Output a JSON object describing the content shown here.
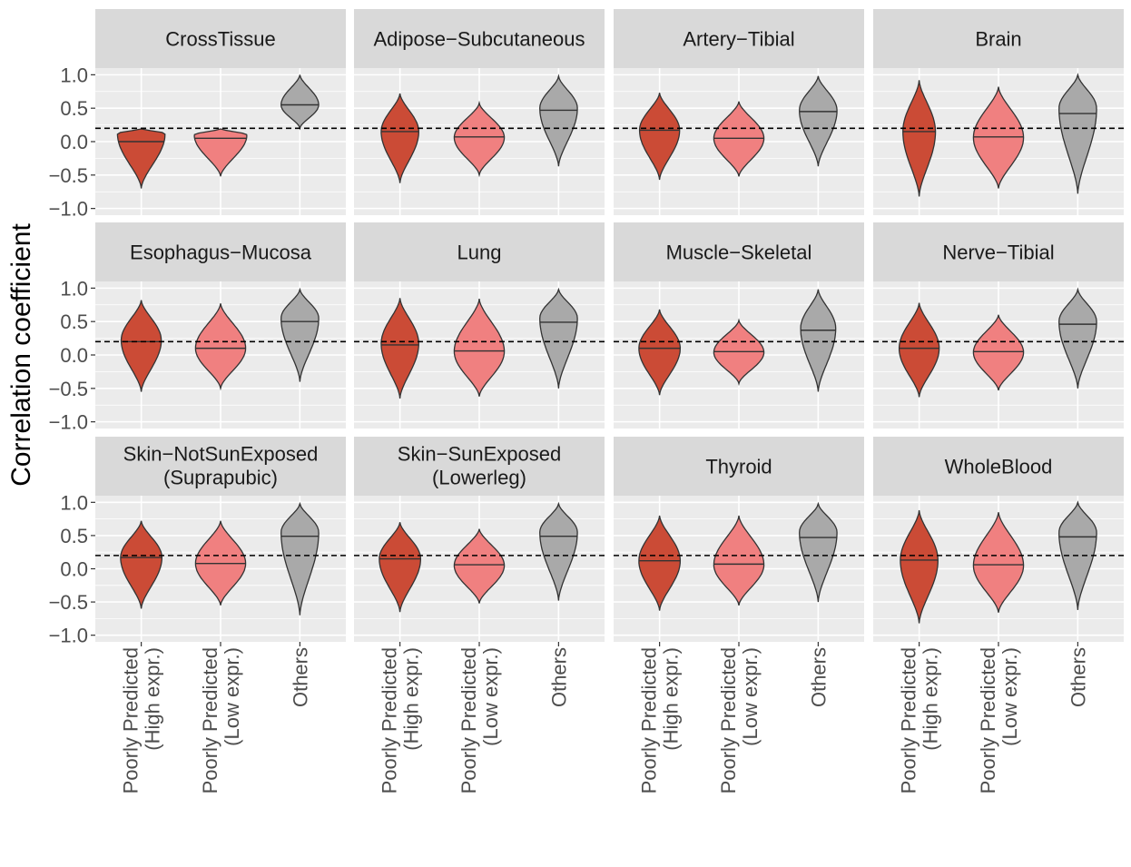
{
  "chart_data": {
    "type": "violin",
    "ylabel": "Correlation coefficient",
    "xlabel": "",
    "ylim": [
      -1.1,
      1.1
    ],
    "yticks": [
      1.0,
      0.5,
      0.0,
      -0.5,
      -1.0
    ],
    "ytick_labels": [
      "1.0",
      "0.5",
      "0.0",
      "−0.5",
      "−1.0"
    ],
    "threshold": 0.2,
    "categories": [
      {
        "line1": "Poorly Predicted",
        "line2": "(High expr.)",
        "color": "#CB4B36"
      },
      {
        "line1": "Poorly Predicted",
        "line2": "(Low expr.)",
        "color": "#F08080"
      },
      {
        "line1": "Others",
        "line2": "",
        "color": "#A9A9A9"
      }
    ],
    "panels": [
      {
        "title": [
          "CrossTissue"
        ],
        "violins": [
          {
            "min": -0.7,
            "max": 0.19,
            "median": 0.0,
            "mode": 0.12,
            "width": 0.38
          },
          {
            "min": -0.52,
            "max": 0.19,
            "median": 0.05,
            "mode": 0.1,
            "width": 0.42
          },
          {
            "min": 0.2,
            "max": 1.0,
            "median": 0.55,
            "mode": 0.55,
            "width": 0.3
          }
        ]
      },
      {
        "title": [
          "Adipose−Subcutaneous"
        ],
        "violins": [
          {
            "min": -0.62,
            "max": 0.72,
            "median": 0.15,
            "mode": 0.15,
            "width": 0.3
          },
          {
            "min": -0.5,
            "max": 0.58,
            "median": 0.07,
            "mode": 0.06,
            "width": 0.4
          },
          {
            "min": -0.37,
            "max": 0.98,
            "median": 0.47,
            "mode": 0.5,
            "width": 0.3
          }
        ]
      },
      {
        "title": [
          "Artery−Tibial"
        ],
        "violins": [
          {
            "min": -0.57,
            "max": 0.73,
            "median": 0.17,
            "mode": 0.17,
            "width": 0.32
          },
          {
            "min": -0.52,
            "max": 0.6,
            "median": 0.05,
            "mode": 0.05,
            "width": 0.4
          },
          {
            "min": -0.37,
            "max": 0.98,
            "median": 0.45,
            "mode": 0.47,
            "width": 0.3
          }
        ]
      },
      {
        "title": [
          "Brain"
        ],
        "violins": [
          {
            "min": -0.82,
            "max": 0.92,
            "median": 0.15,
            "mode": 0.15,
            "width": 0.26
          },
          {
            "min": -0.7,
            "max": 0.82,
            "median": 0.07,
            "mode": 0.06,
            "width": 0.4
          },
          {
            "min": -0.78,
            "max": 1.0,
            "median": 0.42,
            "mode": 0.5,
            "width": 0.3
          }
        ]
      },
      {
        "title": [
          "Esophagus−Mucosa"
        ],
        "violins": [
          {
            "min": -0.55,
            "max": 0.82,
            "median": 0.2,
            "mode": 0.22,
            "width": 0.32
          },
          {
            "min": -0.5,
            "max": 0.77,
            "median": 0.1,
            "mode": 0.1,
            "width": 0.4
          },
          {
            "min": -0.4,
            "max": 0.98,
            "median": 0.5,
            "mode": 0.55,
            "width": 0.3
          }
        ]
      },
      {
        "title": [
          "Lung"
        ],
        "violins": [
          {
            "min": -0.65,
            "max": 0.85,
            "median": 0.15,
            "mode": 0.17,
            "width": 0.3
          },
          {
            "min": -0.62,
            "max": 0.84,
            "median": 0.06,
            "mode": 0.05,
            "width": 0.4
          },
          {
            "min": -0.5,
            "max": 0.98,
            "median": 0.49,
            "mode": 0.55,
            "width": 0.3
          }
        ]
      },
      {
        "title": [
          "Muscle−Skeletal"
        ],
        "violins": [
          {
            "min": -0.6,
            "max": 0.68,
            "median": 0.1,
            "mode": 0.1,
            "width": 0.33
          },
          {
            "min": -0.43,
            "max": 0.52,
            "median": 0.05,
            "mode": 0.04,
            "width": 0.4
          },
          {
            "min": -0.55,
            "max": 0.98,
            "median": 0.37,
            "mode": 0.4,
            "width": 0.28
          }
        ]
      },
      {
        "title": [
          "Nerve−Tibial"
        ],
        "violins": [
          {
            "min": -0.63,
            "max": 0.78,
            "median": 0.1,
            "mode": 0.1,
            "width": 0.32
          },
          {
            "min": -0.53,
            "max": 0.6,
            "median": 0.05,
            "mode": 0.04,
            "width": 0.4
          },
          {
            "min": -0.5,
            "max": 0.98,
            "median": 0.46,
            "mode": 0.5,
            "width": 0.3
          }
        ]
      },
      {
        "title": [
          "Skin−NotSunExposed",
          "(Suprapubic)"
        ],
        "violins": [
          {
            "min": -0.6,
            "max": 0.72,
            "median": 0.17,
            "mode": 0.17,
            "width": 0.33
          },
          {
            "min": -0.55,
            "max": 0.72,
            "median": 0.08,
            "mode": 0.08,
            "width": 0.4
          },
          {
            "min": -0.7,
            "max": 0.98,
            "median": 0.49,
            "mode": 0.55,
            "width": 0.3
          }
        ]
      },
      {
        "title": [
          "Skin−SunExposed",
          "(Lowerleg)"
        ],
        "violins": [
          {
            "min": -0.65,
            "max": 0.7,
            "median": 0.15,
            "mode": 0.15,
            "width": 0.33
          },
          {
            "min": -0.52,
            "max": 0.6,
            "median": 0.06,
            "mode": 0.05,
            "width": 0.4
          },
          {
            "min": -0.48,
            "max": 0.98,
            "median": 0.49,
            "mode": 0.55,
            "width": 0.3
          }
        ]
      },
      {
        "title": [
          "Thyroid"
        ],
        "violins": [
          {
            "min": -0.63,
            "max": 0.8,
            "median": 0.12,
            "mode": 0.12,
            "width": 0.33
          },
          {
            "min": -0.55,
            "max": 0.8,
            "median": 0.07,
            "mode": 0.06,
            "width": 0.4
          },
          {
            "min": -0.5,
            "max": 0.98,
            "median": 0.47,
            "mode": 0.55,
            "width": 0.3
          }
        ]
      },
      {
        "title": [
          "WholeBlood"
        ],
        "violins": [
          {
            "min": -0.82,
            "max": 0.88,
            "median": 0.13,
            "mode": 0.13,
            "width": 0.3
          },
          {
            "min": -0.66,
            "max": 0.85,
            "median": 0.06,
            "mode": 0.05,
            "width": 0.4
          },
          {
            "min": -0.62,
            "max": 1.0,
            "median": 0.48,
            "mode": 0.55,
            "width": 0.3
          }
        ]
      }
    ]
  }
}
